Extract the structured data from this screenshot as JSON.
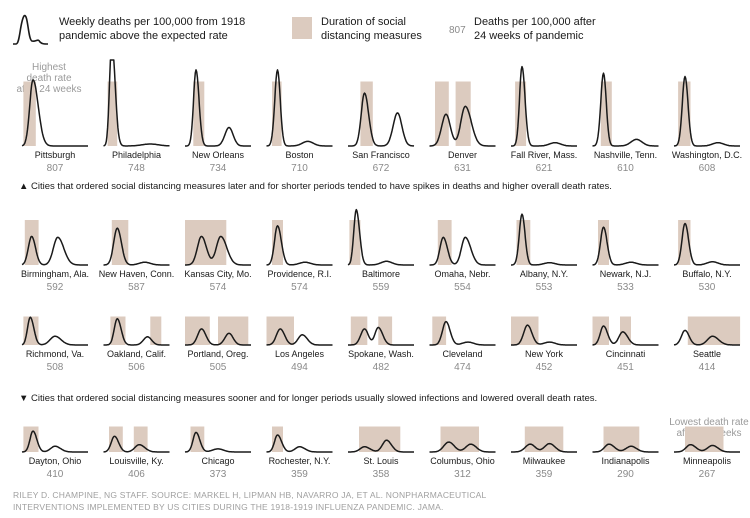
{
  "legend": {
    "curve_label_1": "Weekly deaths per 100,000 from 1918",
    "curve_label_2": "pandemic above the expected rate",
    "bar_label_1": "Duration of social",
    "bar_label_2": "distancing measures",
    "value_example": "807",
    "value_label_1": "Deaths per 100,000 after",
    "value_label_2": "24 weeks of pandemic"
  },
  "callouts": {
    "highest_1": "Highest",
    "highest_2": "death rate",
    "highest_3": "after 24 weeks",
    "lowest_1": "Lowest death rate",
    "lowest_2": "after 24 weeks"
  },
  "notes": {
    "later": "▲ Cities that ordered social distancing measures later and for shorter periods tended to have spikes in deaths and higher overall death rates.",
    "sooner": "▼ Cities that ordered social distancing measures sooner and for longer periods usually slowed infections and lowered overall death rates."
  },
  "credit": {
    "line1": "RILEY D. CHAMPINE, NG STAFF. SOURCE: MARKEL H, LIPMAN HB, NAVARRO JA, ET AL. NONPHARMACEUTICAL",
    "line2": "INTERVENTIONS IMPLEMENTED BY US CITIES DURING THE 1918-1919 INFLUENZA PANDEMIC. JAMA."
  },
  "colors": {
    "curve": "#1a1a1a",
    "distancing_bar": "#dccbbf",
    "value_text": "#8a8a8a",
    "callout_text": "#9a9a9a"
  },
  "chart_data": {
    "type": "line",
    "series_meaning": "Weekly deaths per 100,000 from 1918 pandemic above the expected rate",
    "week_range": [
      0,
      24
    ],
    "bar_meaning": "Duration of social distancing measures (weeks)",
    "cities": [
      {
        "name": "Pittsburgh",
        "value": 807,
        "bars": [
          [
            0.5,
            5
          ]
        ],
        "peaks": [
          [
            4,
            1.0,
            1.2,
            1.9
          ]
        ]
      },
      {
        "name": "Philadelphia",
        "value": 748,
        "bars": [
          [
            1.5,
            5
          ]
        ],
        "peaks": [
          [
            3,
            1.6,
            0.8,
            1.2
          ],
          [
            17,
            0.03,
            3,
            3
          ]
        ]
      },
      {
        "name": "New Orleans",
        "value": 734,
        "bars": [
          [
            3,
            7
          ]
        ],
        "peaks": [
          [
            4,
            1.15,
            0.9,
            1.1
          ],
          [
            16,
            0.28,
            1.5,
            1.5
          ]
        ]
      },
      {
        "name": "Boston",
        "value": 710,
        "bars": [
          [
            2,
            5.5
          ]
        ],
        "peaks": [
          [
            4,
            1.15,
            1.0,
            1.0
          ],
          [
            15,
            0.07,
            2,
            2
          ]
        ]
      },
      {
        "name": "San Francisco",
        "value": 672,
        "bars": [
          [
            4.5,
            9
          ]
        ],
        "peaks": [
          [
            6,
            0.8,
            1.2,
            1.5
          ],
          [
            18,
            0.5,
            1.6,
            1.6
          ]
        ]
      },
      {
        "name": "Denver",
        "value": 631,
        "bars": [
          [
            2,
            7
          ],
          [
            9.5,
            15
          ]
        ],
        "peaks": [
          [
            6,
            0.48,
            1.6,
            1.6
          ],
          [
            13,
            0.6,
            1.6,
            2.2
          ]
        ]
      },
      {
        "name": "Fall River, Mass.",
        "value": 621,
        "bars": [
          [
            1.5,
            5.5
          ]
        ],
        "peaks": [
          [
            4,
            1.2,
            0.9,
            1.1
          ],
          [
            16,
            0.05,
            2,
            2
          ]
        ]
      },
      {
        "name": "Nashville, Tenn.",
        "value": 610,
        "bars": [
          [
            3,
            7
          ]
        ],
        "peaks": [
          [
            4,
            1.1,
            1.0,
            1.0
          ],
          [
            16,
            0.1,
            2,
            2
          ]
        ]
      },
      {
        "name": "Washington, D.C.",
        "value": 608,
        "bars": [
          [
            1.5,
            6
          ]
        ],
        "peaks": [
          [
            4,
            1.05,
            1.0,
            1.1
          ],
          [
            16,
            0.05,
            2,
            2
          ]
        ]
      },
      {
        "name": "Birmingham, Ala.",
        "value": 592,
        "bars": [
          [
            1,
            6
          ]
        ],
        "peaks": [
          [
            3.5,
            0.62,
            1.2,
            1.4
          ],
          [
            13,
            0.6,
            1.6,
            2.2
          ]
        ]
      },
      {
        "name": "New Haven, Conn.",
        "value": 587,
        "bars": [
          [
            3,
            9
          ]
        ],
        "peaks": [
          [
            5,
            0.8,
            1.3,
            1.5
          ],
          [
            15,
            0.06,
            2,
            2
          ]
        ]
      },
      {
        "name": "Kansas City, Mo.",
        "value": 574,
        "bars": [
          [
            0,
            15
          ]
        ],
        "peaks": [
          [
            6,
            0.62,
            1.5,
            1.8
          ],
          [
            13,
            0.62,
            1.6,
            2.2
          ]
        ]
      },
      {
        "name": "Providence, R.I.",
        "value": 574,
        "bars": [
          [
            2,
            6
          ]
        ],
        "peaks": [
          [
            4,
            0.85,
            1.1,
            1.4
          ],
          [
            14,
            0.06,
            2,
            2
          ]
        ]
      },
      {
        "name": "Baltimore",
        "value": 559,
        "bars": [
          [
            0.5,
            4.5
          ]
        ],
        "peaks": [
          [
            3,
            1.2,
            0.9,
            1.2
          ],
          [
            14,
            0.08,
            2,
            2
          ]
        ]
      },
      {
        "name": "Omaha, Nebr.",
        "value": 554,
        "bars": [
          [
            3,
            8
          ]
        ],
        "peaks": [
          [
            5,
            0.6,
            1.2,
            1.5
          ],
          [
            13,
            0.6,
            1.4,
            2
          ]
        ]
      },
      {
        "name": "Albany, N.Y.",
        "value": 553,
        "bars": [
          [
            2,
            7
          ]
        ],
        "peaks": [
          [
            4,
            1.1,
            1.0,
            1.1
          ],
          [
            14,
            0.05,
            2,
            2
          ]
        ]
      },
      {
        "name": "Newark, N.J.",
        "value": 533,
        "bars": [
          [
            2,
            6
          ]
        ],
        "peaks": [
          [
            4,
            0.82,
            1.1,
            1.3
          ],
          [
            14,
            0.06,
            2,
            2
          ]
        ]
      },
      {
        "name": "Buffalo, N.Y.",
        "value": 530,
        "bars": [
          [
            1.5,
            6
          ]
        ],
        "peaks": [
          [
            4,
            0.9,
            1.1,
            1.3
          ],
          [
            14,
            0.07,
            2,
            2
          ]
        ]
      },
      {
        "name": "Richmond, Va.",
        "value": 508,
        "bars": [
          [
            0.5,
            6
          ]
        ],
        "peaks": [
          [
            3,
            0.95,
            1.0,
            1.3
          ],
          [
            12,
            0.3,
            1.8,
            2.2
          ]
        ]
      },
      {
        "name": "Oakland, Calif.",
        "value": 506,
        "bars": [
          [
            2.5,
            8
          ],
          [
            17,
            21
          ]
        ],
        "peaks": [
          [
            5,
            0.9,
            1.1,
            1.4
          ],
          [
            16,
            0.28,
            1.5,
            1.5
          ]
        ]
      },
      {
        "name": "Portland, Oreg.",
        "value": 505,
        "bars": [
          [
            0,
            9
          ],
          [
            12,
            23
          ]
        ],
        "peaks": [
          [
            6,
            0.55,
            1.4,
            1.6
          ],
          [
            16,
            0.4,
            1.5,
            1.5
          ]
        ]
      },
      {
        "name": "Los Angeles",
        "value": 494,
        "bars": [
          [
            0,
            10
          ]
        ],
        "peaks": [
          [
            5,
            0.55,
            1.4,
            1.6
          ],
          [
            13,
            0.35,
            1.5,
            1.8
          ]
        ]
      },
      {
        "name": "Spokane, Wash.",
        "value": 482,
        "bars": [
          [
            1,
            7
          ],
          [
            11,
            16
          ]
        ],
        "peaks": [
          [
            6,
            0.55,
            1.4,
            1.4
          ],
          [
            11,
            0.6,
            1.2,
            1.6
          ]
        ]
      },
      {
        "name": "Cleveland",
        "value": 474,
        "bars": [
          [
            1,
            6
          ]
        ],
        "peaks": [
          [
            6,
            0.8,
            1.3,
            1.5
          ],
          [
            14,
            0.1,
            2,
            2
          ]
        ]
      },
      {
        "name": "New York",
        "value": 452,
        "bars": [
          [
            0,
            10
          ]
        ],
        "peaks": [
          [
            6,
            0.68,
            1.4,
            1.6
          ],
          [
            14,
            0.1,
            2,
            2
          ]
        ]
      },
      {
        "name": "Cincinnati",
        "value": 451,
        "bars": [
          [
            0,
            6
          ],
          [
            10,
            14
          ]
        ],
        "peaks": [
          [
            4,
            0.65,
            1.2,
            1.5
          ],
          [
            11,
            0.45,
            1.4,
            1.8
          ]
        ]
      },
      {
        "name": "Seattle",
        "value": 414,
        "bars": [
          [
            5,
            24
          ]
        ],
        "peaks": [
          [
            4,
            0.5,
            1.3,
            1.5
          ],
          [
            14,
            0.3,
            1.8,
            2.2
          ]
        ]
      },
      {
        "name": "Dayton, Ohio",
        "value": 410,
        "bars": [
          [
            0.5,
            6
          ]
        ],
        "peaks": [
          [
            4,
            0.8,
            1.1,
            1.4
          ],
          [
            12,
            0.22,
            1.6,
            2
          ]
        ]
      },
      {
        "name": "Louisville, Ky.",
        "value": 406,
        "bars": [
          [
            2,
            7
          ],
          [
            11,
            16
          ]
        ],
        "peaks": [
          [
            4,
            0.6,
            1.2,
            1.5
          ],
          [
            13,
            0.28,
            1.6,
            2
          ]
        ]
      },
      {
        "name": "Chicago",
        "value": 373,
        "bars": [
          [
            2,
            7
          ]
        ],
        "peaks": [
          [
            4,
            0.75,
            1.1,
            1.4
          ],
          [
            12,
            0.12,
            2,
            2
          ]
        ]
      },
      {
        "name": "Rochester, N.Y.",
        "value": 359,
        "bars": [
          [
            2,
            6
          ]
        ],
        "peaks": [
          [
            4,
            0.65,
            1.1,
            1.5
          ],
          [
            12,
            0.2,
            1.6,
            2
          ]
        ]
      },
      {
        "name": "St. Louis",
        "value": 358,
        "bars": [
          [
            4,
            19
          ]
        ],
        "peaks": [
          [
            6,
            0.2,
            1.6,
            2
          ],
          [
            14,
            0.45,
            1.5,
            1.8
          ]
        ]
      },
      {
        "name": "Columbus, Ohio",
        "value": 312,
        "bars": [
          [
            4,
            18
          ]
        ],
        "peaks": [
          [
            7,
            0.38,
            1.8,
            2
          ],
          [
            15,
            0.3,
            1.8,
            2
          ]
        ]
      },
      {
        "name": "Milwaukee",
        "value": 359,
        "bars": [
          [
            5,
            19
          ]
        ],
        "peaks": [
          [
            7,
            0.3,
            1.8,
            1.8
          ],
          [
            14,
            0.32,
            1.8,
            2
          ]
        ]
      },
      {
        "name": "Indianapolis",
        "value": 290,
        "bars": [
          [
            4,
            17
          ]
        ],
        "peaks": [
          [
            6,
            0.3,
            1.6,
            2
          ],
          [
            14,
            0.22,
            1.8,
            2
          ]
        ]
      },
      {
        "name": "Minneapolis",
        "value": 267,
        "bars": [
          [
            4,
            18
          ]
        ],
        "peaks": [
          [
            6,
            0.28,
            1.6,
            2
          ],
          [
            14,
            0.25,
            1.8,
            2
          ]
        ]
      }
    ]
  }
}
